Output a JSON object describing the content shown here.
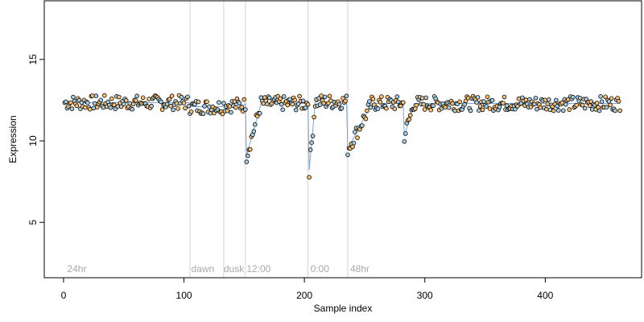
{
  "chart_data": {
    "type": "scatter",
    "xlabel": "Sample index",
    "ylabel": "Expression",
    "xlim": [
      -16,
      480
    ],
    "ylim": [
      1.6,
      18.6
    ],
    "xticks": [
      0,
      100,
      200,
      300,
      400
    ],
    "yticks": [
      5,
      10,
      15
    ],
    "vertical_lines": [
      105,
      133,
      151,
      203,
      236
    ],
    "annotations": [
      {
        "label": "24hr",
        "x": 3
      },
      {
        "label": "dawn",
        "x": 106
      },
      {
        "label": "dusk",
        "x": 133
      },
      {
        "label": "12:00",
        "x": 152
      },
      {
        "label": "0:00",
        "x": 205
      },
      {
        "label": "48hr",
        "x": 238
      }
    ],
    "colors": {
      "orange": "#fdbf6f",
      "blue": "#a6cee3",
      "line": "#5b8fd0",
      "vline": "#d3d3d3",
      "annot": "#a8a8a8"
    },
    "segments": [
      {
        "x0": 1,
        "x1": 104,
        "level": 12.35
      },
      {
        "x0": 105,
        "x1": 132,
        "level": 12.1
      },
      {
        "x0": 133,
        "x1": 150,
        "level": 12.2
      },
      {
        "x0": 151,
        "x1": 202,
        "level": 12.3
      },
      {
        "x0": 203,
        "x1": 235,
        "level": 12.4
      },
      {
        "x0": 236,
        "x1": 462,
        "level": 12.3
      }
    ],
    "dips": [
      {
        "center": 152,
        "depth": 3.2,
        "width": 12
      },
      {
        "center": 204,
        "depth": 4.2,
        "width": 5
      },
      {
        "center": 236,
        "depth": 2.8,
        "width": 20
      },
      {
        "center": 283,
        "depth": 2.0,
        "width": 8
      }
    ]
  }
}
